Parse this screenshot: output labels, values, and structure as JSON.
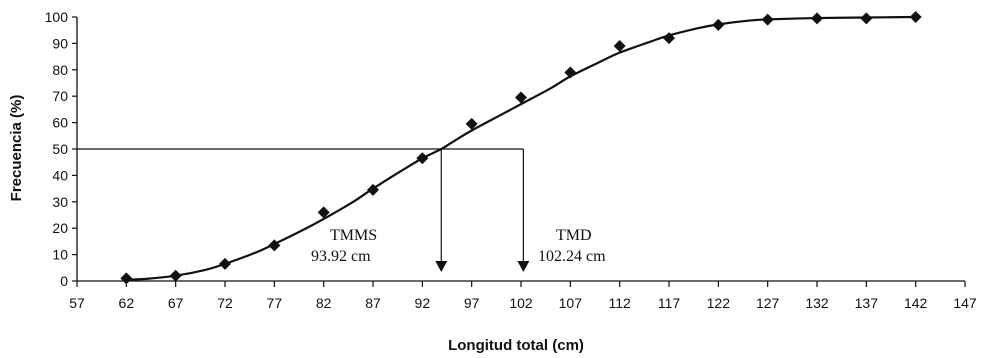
{
  "chart_data": {
    "type": "scatter",
    "title": "",
    "xlabel": "Longitud total (cm)",
    "ylabel": "Frecuencia (%)",
    "xlim": [
      57,
      147
    ],
    "ylim": [
      0,
      100
    ],
    "x_ticks": [
      57,
      62,
      67,
      72,
      77,
      82,
      87,
      92,
      97,
      102,
      107,
      112,
      117,
      122,
      127,
      132,
      137,
      142,
      147
    ],
    "y_ticks": [
      0,
      10,
      20,
      30,
      40,
      50,
      60,
      70,
      80,
      90,
      100
    ],
    "grid": false,
    "series": [
      {
        "marker": "diamond",
        "x": [
          62,
          67,
          72,
          77,
          82,
          87,
          92,
          97,
          102,
          107,
          112,
          117,
          122,
          127,
          132,
          137,
          142
        ],
        "y": [
          1,
          2,
          6.5,
          13.5,
          26,
          34.5,
          46.5,
          59.5,
          69.5,
          79,
          89,
          92,
          97,
          99,
          99.5,
          99.5,
          100
        ]
      }
    ],
    "fitted_curve": {
      "x": [
        62,
        64,
        67,
        70,
        72,
        75,
        77,
        80,
        82,
        85,
        87,
        90,
        92,
        93.92,
        95,
        97,
        100,
        102,
        105,
        107,
        110,
        112,
        115,
        117,
        120,
        122,
        125,
        127,
        132,
        137,
        142
      ],
      "y": [
        0.5,
        0.8,
        2,
        4.2,
        6.5,
        10.6,
        14,
        19.5,
        23.5,
        30,
        35,
        42,
        46.5,
        50,
        52.5,
        57,
        63,
        67,
        73,
        77.5,
        83,
        86.5,
        90.5,
        93,
        95.8,
        97.2,
        98.6,
        99.1,
        99.6,
        99.8,
        100
      ]
    },
    "annotations": [
      {
        "label": "TMMS",
        "value_text": "93.92 cm",
        "x": 93.92,
        "y": 50
      },
      {
        "label": "TMD",
        "value_text": "102.24 cm",
        "x": 102.24,
        "y": 50
      }
    ]
  }
}
